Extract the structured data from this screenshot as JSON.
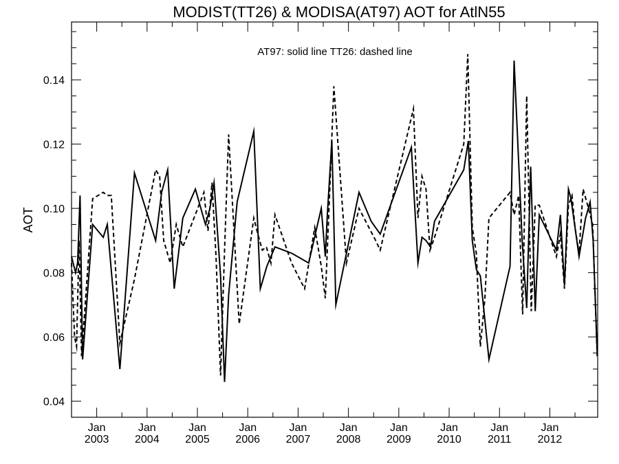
{
  "chart_data": {
    "type": "line",
    "title": "MODIST(TT26) & MODISA(AT97)  AOT for AtlN55",
    "annotation": "AT97: solid line   TT26: dashed line",
    "xlabel": "",
    "ylabel": "AOT",
    "xlim": [
      2002.5,
      2012.95
    ],
    "ylim": [
      0.035,
      0.158
    ],
    "grid": false,
    "y_ticks": [
      0.04,
      0.06,
      0.08,
      0.1,
      0.12,
      0.14
    ],
    "y_tick_labels": [
      "0.04",
      "0.06",
      "0.08",
      "0.10",
      "0.12",
      "0.14"
    ],
    "x_ticks": [
      {
        "x": 2003.0,
        "month": "Jan",
        "year": "2003"
      },
      {
        "x": 2004.0,
        "month": "Jan",
        "year": "2004"
      },
      {
        "x": 2005.0,
        "month": "Jan",
        "year": "2005"
      },
      {
        "x": 2006.0,
        "month": "Jan",
        "year": "2006"
      },
      {
        "x": 2007.0,
        "month": "Jan",
        "year": "2007"
      },
      {
        "x": 2008.0,
        "month": "Jan",
        "year": "2008"
      },
      {
        "x": 2009.0,
        "month": "Jan",
        "year": "2009"
      },
      {
        "x": 2010.0,
        "month": "Jan",
        "year": "2010"
      },
      {
        "x": 2011.0,
        "month": "Jan",
        "year": "2011"
      },
      {
        "x": 2012.0,
        "month": "Jan",
        "year": "2012"
      }
    ],
    "series": [
      {
        "name": "AT97",
        "style": "solid",
        "color": "#000000",
        "x": [
          2002.5,
          2002.58,
          2002.62,
          2002.67,
          2002.72,
          2002.92,
          2003.13,
          2003.21,
          2003.46,
          2003.75,
          2004.17,
          2004.29,
          2004.41,
          2004.54,
          2004.71,
          2004.96,
          2005.16,
          2005.25,
          2005.33,
          2005.46,
          2005.54,
          2005.62,
          2005.79,
          2006.12,
          2006.25,
          2006.38,
          2006.54,
          2006.88,
          2007.21,
          2007.46,
          2007.54,
          2007.58,
          2007.67,
          2007.75,
          2008.21,
          2008.45,
          2008.54,
          2008.63,
          2009.25,
          2009.38,
          2009.46,
          2009.54,
          2009.63,
          2009.71,
          2010.29,
          2010.38,
          2010.46,
          2010.54,
          2010.62,
          2010.79,
          2011.21,
          2011.29,
          2011.45,
          2011.54,
          2011.62,
          2011.71,
          2011.79,
          2012.13,
          2012.21,
          2012.29,
          2012.37,
          2012.42,
          2012.5,
          2012.58,
          2012.71,
          2012.8,
          2012.86,
          2012.94
        ],
        "values": [
          0.085,
          0.08,
          0.083,
          0.104,
          0.053,
          0.095,
          0.091,
          0.095,
          0.05,
          0.111,
          0.09,
          0.105,
          0.112,
          0.075,
          0.097,
          0.106,
          0.095,
          0.1,
          0.108,
          0.079,
          0.046,
          0.073,
          0.102,
          0.124,
          0.075,
          0.082,
          0.088,
          0.086,
          0.083,
          0.1,
          0.085,
          0.098,
          0.121,
          0.07,
          0.105,
          0.096,
          0.094,
          0.092,
          0.119,
          0.083,
          0.091,
          0.09,
          0.088,
          0.096,
          0.112,
          0.121,
          0.09,
          0.081,
          0.079,
          0.053,
          0.082,
          0.146,
          0.09,
          0.069,
          0.113,
          0.068,
          0.098,
          0.087,
          0.098,
          0.076,
          0.106,
          0.103,
          0.094,
          0.085,
          0.097,
          0.102,
          0.09,
          0.055
        ]
      },
      {
        "name": "TT26",
        "style": "dashed",
        "color": "#000000",
        "x": [
          2002.5,
          2002.56,
          2002.6,
          2002.65,
          2002.7,
          2002.92,
          2003.13,
          2003.21,
          2003.29,
          2003.46,
          2003.75,
          2004.17,
          2004.25,
          2004.33,
          2004.46,
          2004.58,
          2004.71,
          2005.13,
          2005.21,
          2005.29,
          2005.37,
          2005.46,
          2005.54,
          2005.62,
          2005.83,
          2006.12,
          2006.2,
          2006.29,
          2006.37,
          2006.46,
          2006.54,
          2006.87,
          2007.13,
          2007.33,
          2007.46,
          2007.54,
          2007.63,
          2007.71,
          2007.96,
          2008.21,
          2008.54,
          2008.63,
          2009.29,
          2009.38,
          2009.46,
          2009.54,
          2009.62,
          2009.71,
          2009.79,
          2010.29,
          2010.37,
          2010.46,
          2010.54,
          2010.62,
          2010.71,
          2010.79,
          2011.21,
          2011.29,
          2011.38,
          2011.46,
          2011.54,
          2011.63,
          2011.71,
          2011.79,
          2012.13,
          2012.21,
          2012.29,
          2012.37,
          2012.44,
          2012.5,
          2012.58,
          2012.66,
          2012.75,
          2012.85,
          2012.94
        ],
        "values": [
          0.083,
          0.06,
          0.057,
          0.09,
          0.054,
          0.103,
          0.105,
          0.104,
          0.104,
          0.058,
          0.078,
          0.112,
          0.11,
          0.09,
          0.083,
          0.095,
          0.088,
          0.105,
          0.093,
          0.108,
          0.085,
          0.048,
          0.087,
          0.123,
          0.064,
          0.097,
          0.092,
          0.087,
          0.088,
          0.083,
          0.098,
          0.083,
          0.075,
          0.094,
          0.082,
          0.072,
          0.106,
          0.138,
          0.083,
          0.1,
          0.09,
          0.087,
          0.131,
          0.097,
          0.11,
          0.106,
          0.087,
          0.091,
          0.095,
          0.12,
          0.148,
          0.094,
          0.086,
          0.057,
          0.072,
          0.097,
          0.105,
          0.098,
          0.104,
          0.067,
          0.135,
          0.068,
          0.101,
          0.101,
          0.085,
          0.092,
          0.075,
          0.101,
          0.104,
          0.094,
          0.086,
          0.106,
          0.101,
          0.095,
          0.054
        ]
      }
    ]
  }
}
